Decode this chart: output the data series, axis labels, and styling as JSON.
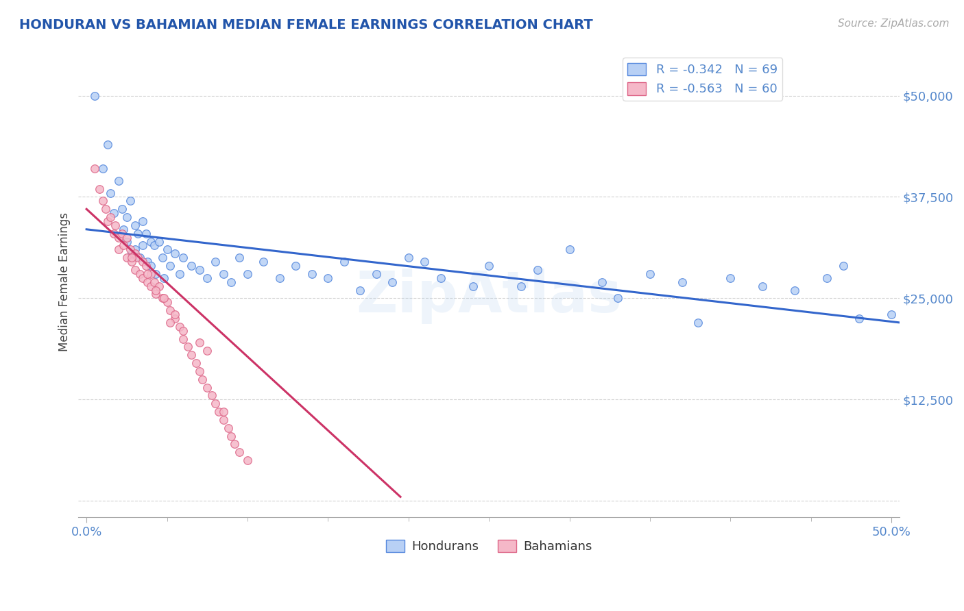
{
  "title": "HONDURAN VS BAHAMIAN MEDIAN FEMALE EARNINGS CORRELATION CHART",
  "source": "Source: ZipAtlas.com",
  "ylabel": "Median Female Earnings",
  "yticks": [
    0,
    12500,
    25000,
    37500,
    50000
  ],
  "ytick_labels": [
    "",
    "$12,500",
    "$25,000",
    "$37,500",
    "$50,000"
  ],
  "xtick_vals": [
    0.0,
    0.5
  ],
  "xtick_labels": [
    "0.0%",
    "50.0%"
  ],
  "xlim": [
    -0.005,
    0.505
  ],
  "ylim": [
    -2000,
    56000
  ],
  "watermark": "ZipAtlas",
  "blue_fill": "#b8d0f5",
  "pink_fill": "#f5b8c8",
  "blue_edge": "#5588dd",
  "pink_edge": "#dd6688",
  "blue_line_color": "#3366cc",
  "pink_line_color": "#cc3366",
  "R_blue": -0.342,
  "N_blue": 69,
  "R_pink": -0.563,
  "N_pink": 60,
  "blue_scatter_x": [
    0.005,
    0.01,
    0.013,
    0.015,
    0.017,
    0.02,
    0.022,
    0.023,
    0.025,
    0.025,
    0.027,
    0.028,
    0.03,
    0.03,
    0.032,
    0.033,
    0.035,
    0.035,
    0.037,
    0.038,
    0.04,
    0.04,
    0.042,
    0.043,
    0.045,
    0.047,
    0.048,
    0.05,
    0.052,
    0.055,
    0.058,
    0.06,
    0.065,
    0.07,
    0.075,
    0.08,
    0.085,
    0.09,
    0.095,
    0.1,
    0.11,
    0.12,
    0.13,
    0.14,
    0.15,
    0.16,
    0.17,
    0.18,
    0.2,
    0.22,
    0.24,
    0.25,
    0.27,
    0.28,
    0.3,
    0.32,
    0.33,
    0.35,
    0.37,
    0.38,
    0.4,
    0.42,
    0.44,
    0.46,
    0.47,
    0.48,
    0.5,
    0.19,
    0.21
  ],
  "blue_scatter_y": [
    50000,
    41000,
    44000,
    38000,
    35500,
    39500,
    36000,
    33500,
    35000,
    32000,
    37000,
    30500,
    34000,
    31000,
    33000,
    30000,
    34500,
    31500,
    33000,
    29500,
    32000,
    29000,
    31500,
    28000,
    32000,
    30000,
    27500,
    31000,
    29000,
    30500,
    28000,
    30000,
    29000,
    28500,
    27500,
    29500,
    28000,
    27000,
    30000,
    28000,
    29500,
    27500,
    29000,
    28000,
    27500,
    29500,
    26000,
    28000,
    30000,
    27500,
    26500,
    29000,
    26500,
    28500,
    31000,
    27000,
    25000,
    28000,
    27000,
    22000,
    27500,
    26500,
    26000,
    27500,
    29000,
    22500,
    23000,
    27000,
    29500
  ],
  "pink_scatter_x": [
    0.005,
    0.008,
    0.01,
    0.012,
    0.013,
    0.015,
    0.017,
    0.018,
    0.02,
    0.02,
    0.022,
    0.023,
    0.025,
    0.025,
    0.027,
    0.028,
    0.03,
    0.03,
    0.032,
    0.033,
    0.035,
    0.035,
    0.037,
    0.038,
    0.04,
    0.04,
    0.042,
    0.043,
    0.045,
    0.047,
    0.05,
    0.052,
    0.055,
    0.058,
    0.06,
    0.063,
    0.065,
    0.068,
    0.07,
    0.072,
    0.075,
    0.078,
    0.08,
    0.082,
    0.085,
    0.088,
    0.09,
    0.092,
    0.095,
    0.1,
    0.055,
    0.06,
    0.07,
    0.075,
    0.085,
    0.048,
    0.052,
    0.038,
    0.043,
    0.028
  ],
  "pink_scatter_y": [
    41000,
    38500,
    37000,
    36000,
    34500,
    35000,
    33000,
    34000,
    32500,
    31000,
    33000,
    31500,
    32500,
    30000,
    31000,
    29500,
    30500,
    28500,
    30000,
    28000,
    29500,
    27500,
    29000,
    27000,
    28000,
    26500,
    27000,
    25500,
    26500,
    25000,
    24500,
    23500,
    22500,
    21500,
    20000,
    19000,
    18000,
    17000,
    16000,
    15000,
    14000,
    13000,
    12000,
    11000,
    10000,
    9000,
    8000,
    7000,
    6000,
    5000,
    23000,
    21000,
    19500,
    18500,
    11000,
    25000,
    22000,
    28000,
    26000,
    30000
  ],
  "blue_trend_x": [
    0.0,
    0.505
  ],
  "blue_trend_y": [
    33500,
    22000
  ],
  "pink_trend_x": [
    0.0,
    0.195
  ],
  "pink_trend_y": [
    36000,
    500
  ],
  "title_color": "#2255aa",
  "tick_color": "#5588cc",
  "grid_color": "#cccccc",
  "legend_label_color": "#5588cc"
}
